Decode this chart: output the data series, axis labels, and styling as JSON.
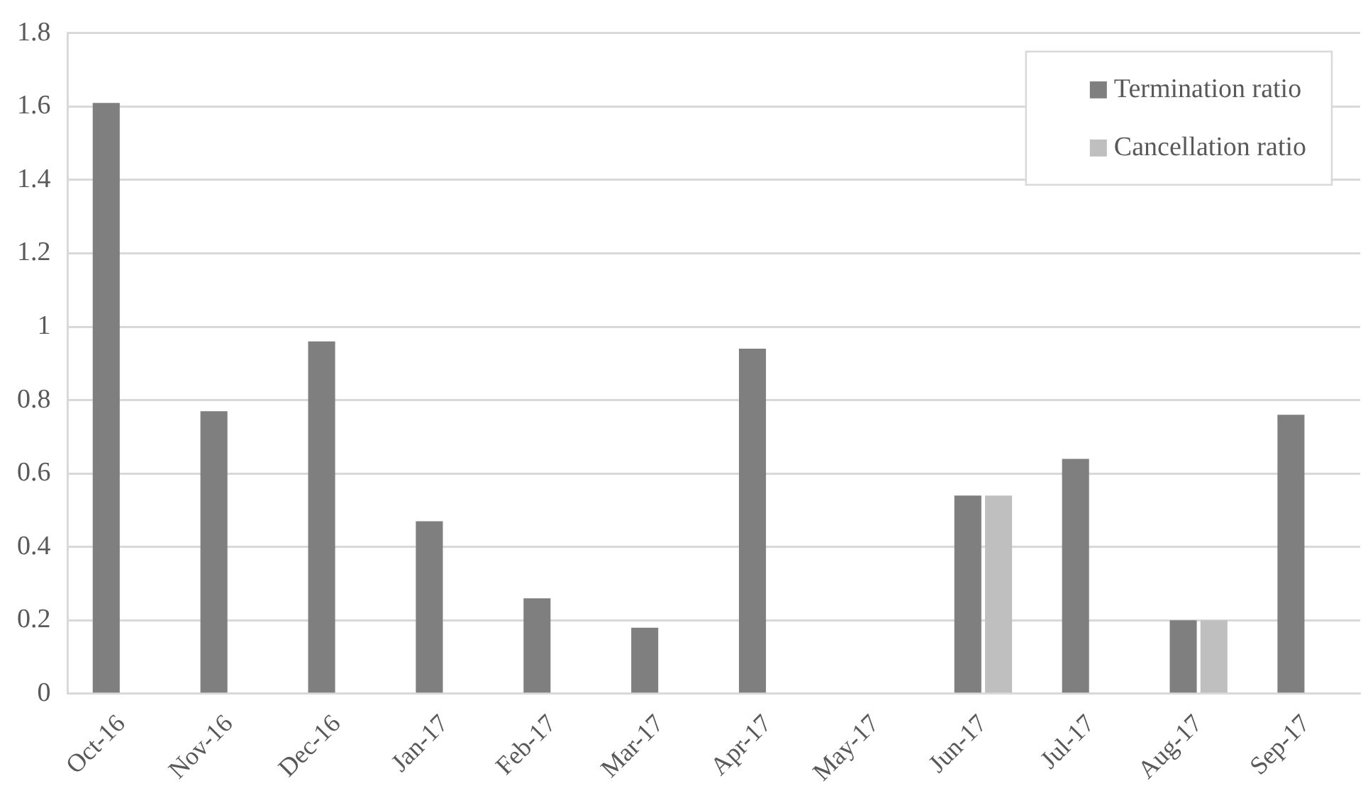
{
  "chart_data": {
    "type": "bar",
    "categories": [
      "Oct-16",
      "Nov-16",
      "Dec-16",
      "Jan-17",
      "Feb-17",
      "Mar-17",
      "Apr-17",
      "May-17",
      "Jun-17",
      "Jul-17",
      "Aug-17",
      "Sep-17"
    ],
    "series": [
      {
        "name": "Termination ratio",
        "color": "#7f7f7f",
        "values": [
          1.61,
          0.77,
          0.96,
          0.47,
          0.26,
          0.18,
          0.94,
          0,
          0.54,
          0.64,
          0.2,
          0.76
        ]
      },
      {
        "name": "Cancellation ratio",
        "color": "#bfbfbf",
        "values": [
          0,
          0,
          0,
          0,
          0,
          0,
          0,
          0,
          0.54,
          0,
          0.2,
          0
        ]
      }
    ],
    "ylim": [
      0,
      1.8
    ],
    "yticks": [
      0,
      0.2,
      0.4,
      0.6,
      0.8,
      1,
      1.2,
      1.4,
      1.6,
      1.8
    ],
    "grid": "y",
    "legend": "top right"
  }
}
